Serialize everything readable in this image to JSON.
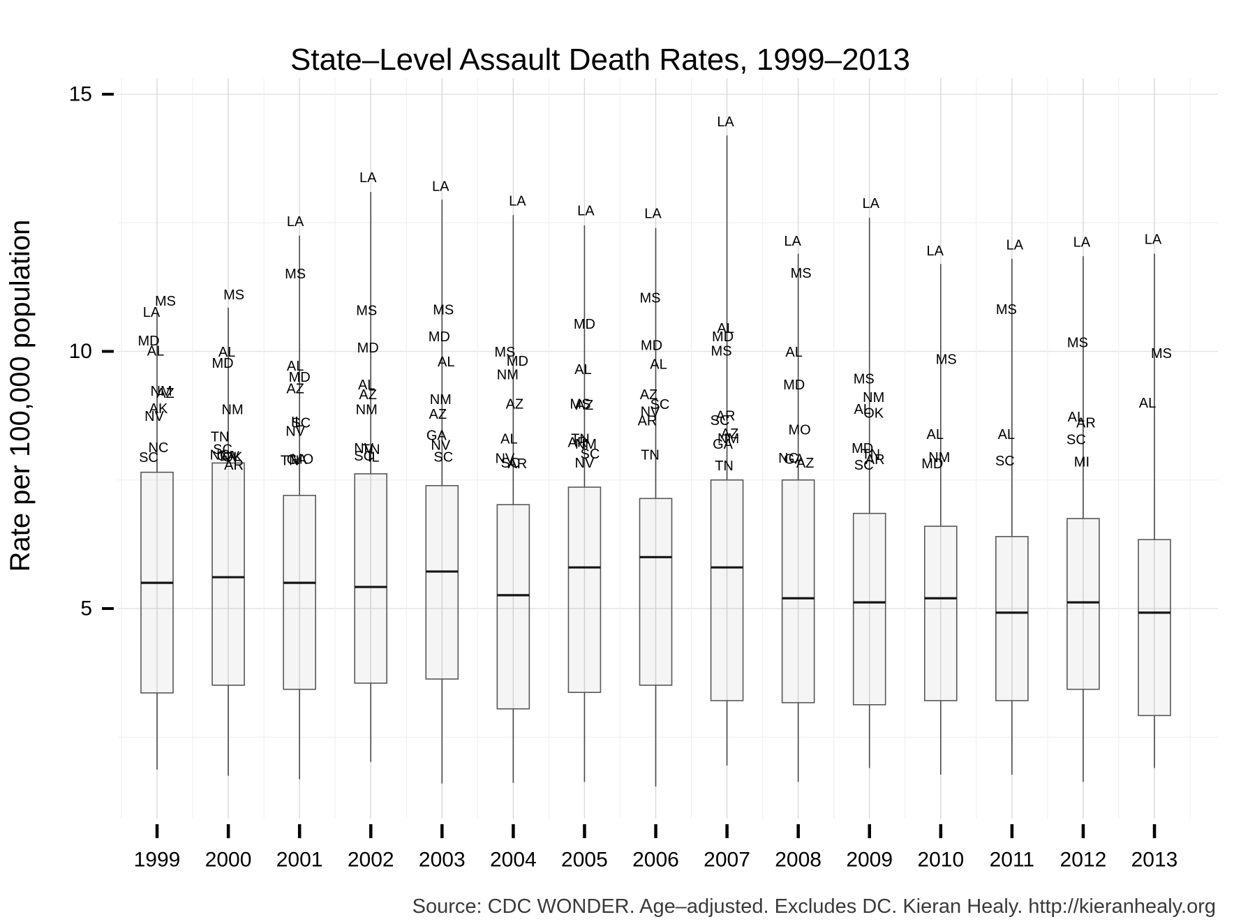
{
  "chart_data": {
    "type": "boxplot",
    "title": "State–Level Assault Death Rates, 1999–2013",
    "ylabel": "Rate per 100,000 population",
    "caption": "Source: CDC WONDER. Age–adjusted. Excludes DC. Kieran Healy. http://kieranhealy.org",
    "x_categories": [
      "1999",
      "2000",
      "2001",
      "2002",
      "2003",
      "2004",
      "2005",
      "2006",
      "2007",
      "2008",
      "2009",
      "2010",
      "2011",
      "2012",
      "2013"
    ],
    "y_axis_ticks": [
      {
        "label": "15",
        "value": 15
      },
      {
        "label": "10",
        "value": 10
      },
      {
        "label": "5",
        "value": 5
      }
    ],
    "y_major_gridlines": [
      5,
      10,
      15
    ],
    "y_minor_gridlines": [
      2.5,
      7.5,
      12.5
    ],
    "ylim": [
      0.9,
      15.3
    ],
    "grid": true,
    "legend": "none",
    "years": [
      {
        "year": "1999",
        "whisker_low": 1.87,
        "q1": 3.36,
        "median": 5.5,
        "q3": 7.65,
        "line_top": 10.72,
        "outliers": [
          {
            "state": "MS",
            "value": 10.97,
            "dx": 12
          },
          {
            "state": "LA",
            "value": 10.75,
            "dx": -8
          },
          {
            "state": "MD",
            "value": 10.2,
            "dx": -12
          },
          {
            "state": "AL",
            "value": 10.0,
            "dx": -2
          },
          {
            "state": "NM",
            "value": 9.22,
            "dx": 6
          },
          {
            "state": "AZ",
            "value": 9.18,
            "dx": 12
          },
          {
            "state": "AK",
            "value": 8.88,
            "dx": 2
          },
          {
            "state": "NV",
            "value": 8.73,
            "dx": -4
          },
          {
            "state": "NC",
            "value": 8.12,
            "dx": 2
          },
          {
            "state": "SC",
            "value": 7.93,
            "dx": -12
          }
        ]
      },
      {
        "year": "2000",
        "whisker_low": 1.75,
        "q1": 3.51,
        "median": 5.61,
        "q3": 7.83,
        "line_top": 10.85,
        "outliers": [
          {
            "state": "MS",
            "value": 11.09,
            "dx": 8
          },
          {
            "state": "AL",
            "value": 9.98,
            "dx": -2
          },
          {
            "state": "MD",
            "value": 9.76,
            "dx": -8
          },
          {
            "state": "NM",
            "value": 8.86,
            "dx": 6
          },
          {
            "state": "TN",
            "value": 8.33,
            "dx": -12
          },
          {
            "state": "SC",
            "value": 8.09,
            "dx": -8
          },
          {
            "state": "NC",
            "value": 7.98,
            "dx": -12
          },
          {
            "state": "GA",
            "value": 7.96,
            "dx": -2
          },
          {
            "state": "NV",
            "value": 7.95,
            "dx": 2
          },
          {
            "state": "OK",
            "value": 7.94,
            "dx": 6
          },
          {
            "state": "AR",
            "value": 7.78,
            "dx": 8
          }
        ]
      },
      {
        "year": "2001",
        "whisker_low": 1.68,
        "q1": 3.43,
        "median": 5.5,
        "q3": 7.2,
        "line_top": 12.25,
        "outliers": [
          {
            "state": "LA",
            "value": 12.52,
            "dx": -6
          },
          {
            "state": "MS",
            "value": 11.5,
            "dx": -6
          },
          {
            "state": "AL",
            "value": 9.71,
            "dx": -6
          },
          {
            "state": "MD",
            "value": 9.49,
            "dx": 0
          },
          {
            "state": "AZ",
            "value": 9.27,
            "dx": -6
          },
          {
            "state": "IL",
            "value": 8.62,
            "dx": -4
          },
          {
            "state": "SC",
            "value": 8.6,
            "dx": 2
          },
          {
            "state": "NV",
            "value": 8.44,
            "dx": -6
          },
          {
            "state": "TN",
            "value": 7.87,
            "dx": -14
          },
          {
            "state": "GA",
            "value": 7.89,
            "dx": -4
          },
          {
            "state": "MO",
            "value": 7.9,
            "dx": 4
          }
        ]
      },
      {
        "year": "2002",
        "whisker_low": 2.02,
        "q1": 3.55,
        "median": 5.42,
        "q3": 7.62,
        "line_top": 13.1,
        "outliers": [
          {
            "state": "LA",
            "value": 13.37,
            "dx": -4
          },
          {
            "state": "MS",
            "value": 10.79,
            "dx": -6
          },
          {
            "state": "MD",
            "value": 10.06,
            "dx": -4
          },
          {
            "state": "AL",
            "value": 9.34,
            "dx": -6
          },
          {
            "state": "AZ",
            "value": 9.15,
            "dx": -4
          },
          {
            "state": "NM",
            "value": 8.86,
            "dx": -6
          },
          {
            "state": "NV",
            "value": 8.11,
            "dx": -10
          },
          {
            "state": "TN",
            "value": 8.09,
            "dx": 0
          },
          {
            "state": "SC",
            "value": 7.96,
            "dx": -10
          },
          {
            "state": "IL",
            "value": 7.94,
            "dx": 4
          }
        ]
      },
      {
        "year": "2003",
        "whisker_low": 1.6,
        "q1": 3.63,
        "median": 5.72,
        "q3": 7.39,
        "line_top": 12.95,
        "outliers": [
          {
            "state": "LA",
            "value": 13.2,
            "dx": -2
          },
          {
            "state": "MS",
            "value": 10.8,
            "dx": 2
          },
          {
            "state": "MD",
            "value": 10.28,
            "dx": -4
          },
          {
            "state": "AL",
            "value": 9.79,
            "dx": 6
          },
          {
            "state": "NM",
            "value": 9.06,
            "dx": -2
          },
          {
            "state": "AZ",
            "value": 8.77,
            "dx": -6
          },
          {
            "state": "GA",
            "value": 8.36,
            "dx": -8
          },
          {
            "state": "NV",
            "value": 8.17,
            "dx": -2
          },
          {
            "state": "SC",
            "value": 7.94,
            "dx": 2
          }
        ]
      },
      {
        "year": "2004",
        "whisker_low": 1.61,
        "q1": 3.05,
        "median": 5.26,
        "q3": 7.02,
        "line_top": 12.65,
        "outliers": [
          {
            "state": "LA",
            "value": 12.92,
            "dx": 6
          },
          {
            "state": "MS",
            "value": 9.98,
            "dx": -12
          },
          {
            "state": "MD",
            "value": 9.8,
            "dx": 6
          },
          {
            "state": "NM",
            "value": 9.54,
            "dx": -8
          },
          {
            "state": "AZ",
            "value": 8.97,
            "dx": 2
          },
          {
            "state": "AL",
            "value": 8.29,
            "dx": -6
          },
          {
            "state": "NV",
            "value": 7.91,
            "dx": -12
          },
          {
            "state": "SC",
            "value": 7.82,
            "dx": -4
          },
          {
            "state": "AR",
            "value": 7.81,
            "dx": 6
          }
        ]
      },
      {
        "year": "2005",
        "whisker_low": 1.63,
        "q1": 3.37,
        "median": 5.8,
        "q3": 7.36,
        "line_top": 12.45,
        "outliers": [
          {
            "state": "LA",
            "value": 12.73,
            "dx": 2
          },
          {
            "state": "MD",
            "value": 10.52,
            "dx": 0
          },
          {
            "state": "AL",
            "value": 9.64,
            "dx": -2
          },
          {
            "state": "MS",
            "value": 8.97,
            "dx": -6
          },
          {
            "state": "AZ",
            "value": 8.95,
            "dx": 0
          },
          {
            "state": "TN",
            "value": 8.29,
            "dx": -6
          },
          {
            "state": "AR",
            "value": 8.22,
            "dx": -10
          },
          {
            "state": "NM",
            "value": 8.19,
            "dx": 2
          },
          {
            "state": "SC",
            "value": 8.0,
            "dx": 8
          },
          {
            "state": "NV",
            "value": 7.82,
            "dx": 0
          }
        ]
      },
      {
        "year": "2006",
        "whisker_low": 1.54,
        "q1": 3.51,
        "median": 6.0,
        "q3": 7.14,
        "line_top": 12.4,
        "outliers": [
          {
            "state": "LA",
            "value": 12.67,
            "dx": -4
          },
          {
            "state": "MS",
            "value": 11.03,
            "dx": -8
          },
          {
            "state": "MD",
            "value": 10.11,
            "dx": -6
          },
          {
            "state": "AL",
            "value": 9.74,
            "dx": 4
          },
          {
            "state": "AZ",
            "value": 9.15,
            "dx": -10
          },
          {
            "state": "SC",
            "value": 8.96,
            "dx": 6
          },
          {
            "state": "NV",
            "value": 8.82,
            "dx": -8
          },
          {
            "state": "AR",
            "value": 8.64,
            "dx": -12
          },
          {
            "state": "TN",
            "value": 7.98,
            "dx": -8
          }
        ]
      },
      {
        "year": "2007",
        "whisker_low": 1.95,
        "q1": 3.21,
        "median": 5.8,
        "q3": 7.5,
        "line_top": 14.2,
        "outliers": [
          {
            "state": "LA",
            "value": 14.46,
            "dx": -2
          },
          {
            "state": "AL",
            "value": 10.44,
            "dx": -2
          },
          {
            "state": "MD",
            "value": 10.28,
            "dx": -6
          },
          {
            "state": "MS",
            "value": 10.0,
            "dx": -8
          },
          {
            "state": "AR",
            "value": 8.74,
            "dx": -2
          },
          {
            "state": "SC",
            "value": 8.65,
            "dx": -10
          },
          {
            "state": "AZ",
            "value": 8.39,
            "dx": 4
          },
          {
            "state": "NM",
            "value": 8.3,
            "dx": 2
          },
          {
            "state": "GA",
            "value": 8.19,
            "dx": -6
          },
          {
            "state": "TN",
            "value": 7.77,
            "dx": -4
          }
        ]
      },
      {
        "year": "2008",
        "whisker_low": 1.63,
        "q1": 3.17,
        "median": 5.2,
        "q3": 7.5,
        "line_top": 11.9,
        "outliers": [
          {
            "state": "LA",
            "value": 12.14,
            "dx": -8
          },
          {
            "state": "MS",
            "value": 11.51,
            "dx": 4
          },
          {
            "state": "AL",
            "value": 9.98,
            "dx": -6
          },
          {
            "state": "MD",
            "value": 9.34,
            "dx": -6
          },
          {
            "state": "MO",
            "value": 8.47,
            "dx": 2
          },
          {
            "state": "NC",
            "value": 7.92,
            "dx": -14
          },
          {
            "state": "GA",
            "value": 7.9,
            "dx": -6
          },
          {
            "state": "AZ",
            "value": 7.82,
            "dx": 10
          }
        ]
      },
      {
        "year": "2009",
        "whisker_low": 1.9,
        "q1": 3.13,
        "median": 5.12,
        "q3": 6.85,
        "line_top": 12.6,
        "outliers": [
          {
            "state": "LA",
            "value": 12.87,
            "dx": 2
          },
          {
            "state": "MS",
            "value": 9.46,
            "dx": -8
          },
          {
            "state": "NM",
            "value": 9.1,
            "dx": 6
          },
          {
            "state": "AL",
            "value": 8.87,
            "dx": -10
          },
          {
            "state": "OK",
            "value": 8.79,
            "dx": 6
          },
          {
            "state": "MD",
            "value": 8.11,
            "dx": -10
          },
          {
            "state": "TN",
            "value": 7.99,
            "dx": 2
          },
          {
            "state": "AR",
            "value": 7.89,
            "dx": 8
          },
          {
            "state": "SC",
            "value": 7.78,
            "dx": -8
          }
        ]
      },
      {
        "year": "2010",
        "whisker_low": 1.77,
        "q1": 3.21,
        "median": 5.2,
        "q3": 6.6,
        "line_top": 11.7,
        "outliers": [
          {
            "state": "LA",
            "value": 11.95,
            "dx": -8
          },
          {
            "state": "MS",
            "value": 9.84,
            "dx": 8
          },
          {
            "state": "AL",
            "value": 8.38,
            "dx": -8
          },
          {
            "state": "NM",
            "value": 7.93,
            "dx": -2
          },
          {
            "state": "MD",
            "value": 7.81,
            "dx": -12
          }
        ]
      },
      {
        "year": "2011",
        "whisker_low": 1.77,
        "q1": 3.21,
        "median": 4.92,
        "q3": 6.4,
        "line_top": 11.8,
        "outliers": [
          {
            "state": "LA",
            "value": 12.06,
            "dx": 4
          },
          {
            "state": "MS",
            "value": 10.81,
            "dx": -8
          },
          {
            "state": "AL",
            "value": 8.38,
            "dx": -8
          },
          {
            "state": "SC",
            "value": 7.86,
            "dx": -10
          }
        ]
      },
      {
        "year": "2012",
        "whisker_low": 1.63,
        "q1": 3.43,
        "median": 5.12,
        "q3": 6.75,
        "line_top": 11.85,
        "outliers": [
          {
            "state": "LA",
            "value": 12.12,
            "dx": -2
          },
          {
            "state": "MS",
            "value": 10.16,
            "dx": -8
          },
          {
            "state": "AL",
            "value": 8.72,
            "dx": -10
          },
          {
            "state": "AR",
            "value": 8.6,
            "dx": 4
          },
          {
            "state": "SC",
            "value": 8.28,
            "dx": -10
          },
          {
            "state": "MI",
            "value": 7.84,
            "dx": -2
          }
        ]
      },
      {
        "year": "2013",
        "whisker_low": 1.9,
        "q1": 2.92,
        "median": 4.92,
        "q3": 6.34,
        "line_top": 11.9,
        "outliers": [
          {
            "state": "LA",
            "value": 12.17,
            "dx": -2
          },
          {
            "state": "MS",
            "value": 9.95,
            "dx": 10
          },
          {
            "state": "AL",
            "value": 8.99,
            "dx": -10
          }
        ]
      }
    ],
    "colors": {
      "background": "#ffffff",
      "major_gridline": "#e3e3e3",
      "minor_gridline": "#f0f0f0",
      "vertical_gridline": "#d8d8d8",
      "box_stroke": "#575757",
      "median": "#141414",
      "whisker": "#474747",
      "tick": "#000000",
      "label_text": "#000000",
      "caption_text": "#3a3a3a"
    }
  }
}
